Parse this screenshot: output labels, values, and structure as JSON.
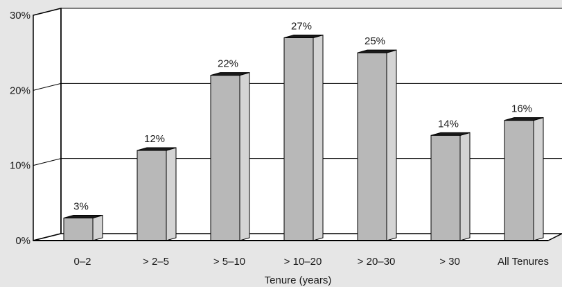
{
  "chart_data": {
    "type": "bar",
    "xlabel": "Tenure (years)",
    "ylabel": "",
    "ylim": [
      0,
      30
    ],
    "y_ticks": [
      0,
      10,
      20,
      30
    ],
    "y_tick_labels": [
      "0%",
      "10%",
      "20%",
      "30%"
    ],
    "grid": true,
    "style": "3d-bar",
    "categories": [
      "0–2",
      "> 2–5",
      "> 5–10",
      "> 10–20",
      "> 20–30",
      "> 30",
      "All Tenures"
    ],
    "values": [
      3,
      12,
      22,
      27,
      25,
      14,
      16
    ],
    "data_labels": [
      "3%",
      "12%",
      "22%",
      "27%",
      "25%",
      "14%",
      "16%"
    ]
  },
  "colors": {
    "background": "#e6e6e6",
    "plot_area": "#ffffff",
    "bar_front": "#b8b8b8",
    "bar_side": "#d4d4d4",
    "bar_top": "#1a1a1a",
    "axis": "#000000"
  }
}
